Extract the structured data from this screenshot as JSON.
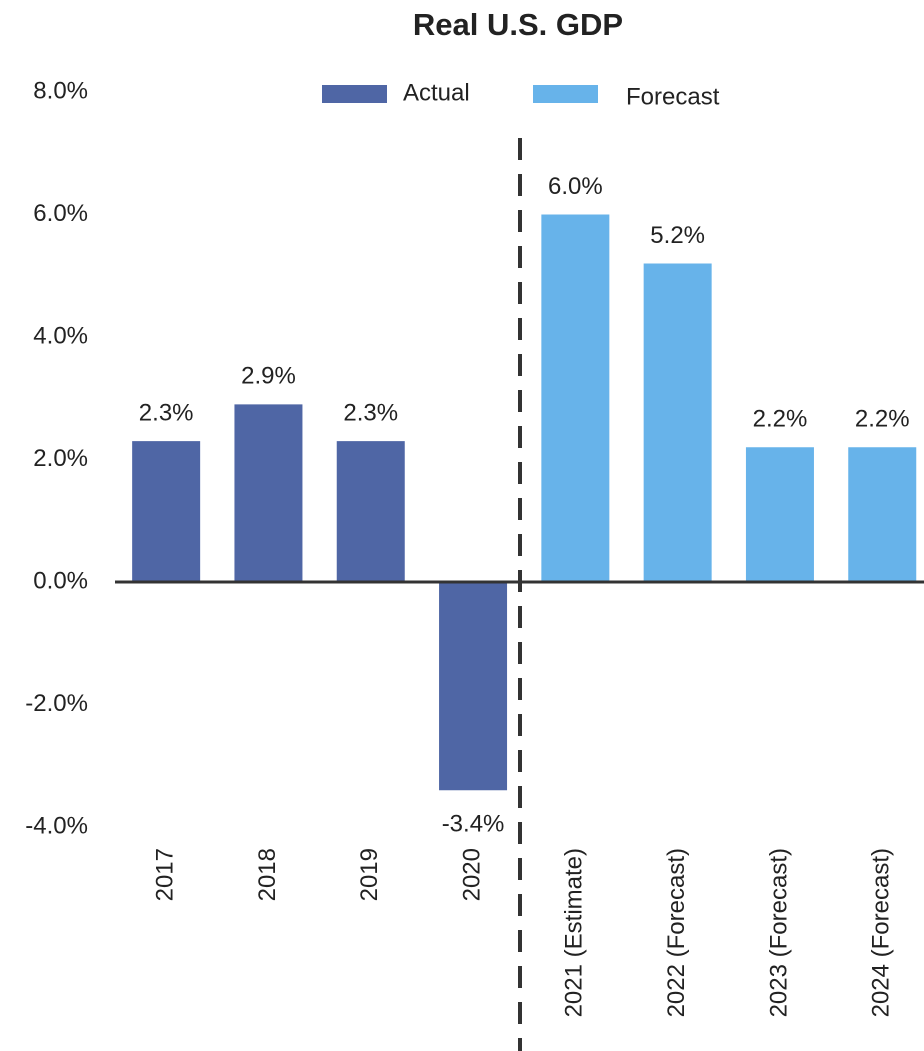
{
  "chart_data": {
    "type": "bar",
    "title": "Real U.S. GDP",
    "categories": [
      "2017",
      "2018",
      "2019",
      "2020",
      "2021 (Estimate)",
      "2022 (Forecast)",
      "2023 (Forecast)",
      "2024 (Forecast)"
    ],
    "series": [
      {
        "name": "Actual",
        "color": "#4f66a5",
        "values": [
          2.3,
          2.9,
          2.3,
          -3.4,
          null,
          null,
          null,
          null
        ],
        "value_labels": [
          "2.3%",
          "2.9%",
          "2.3%",
          "-3.4%",
          null,
          null,
          null,
          null
        ]
      },
      {
        "name": "Forecast",
        "color": "#67b3ea",
        "values": [
          null,
          null,
          null,
          null,
          6.0,
          5.2,
          2.2,
          2.2
        ],
        "value_labels": [
          null,
          null,
          null,
          null,
          "6.0%",
          "5.2%",
          "2.2%",
          "2.2%"
        ]
      }
    ],
    "ylim": [
      -4,
      8
    ],
    "yticks": [
      {
        "value": -4,
        "label": "-4.0%"
      },
      {
        "value": -2,
        "label": "-2.0%"
      },
      {
        "value": 0,
        "label": "0.0%"
      },
      {
        "value": 2,
        "label": "2.0%"
      },
      {
        "value": 4,
        "label": "4.0%"
      },
      {
        "value": 6,
        "label": "6.0%"
      },
      {
        "value": 8,
        "label": "8.0%"
      }
    ],
    "grid": false,
    "legend": "top"
  }
}
